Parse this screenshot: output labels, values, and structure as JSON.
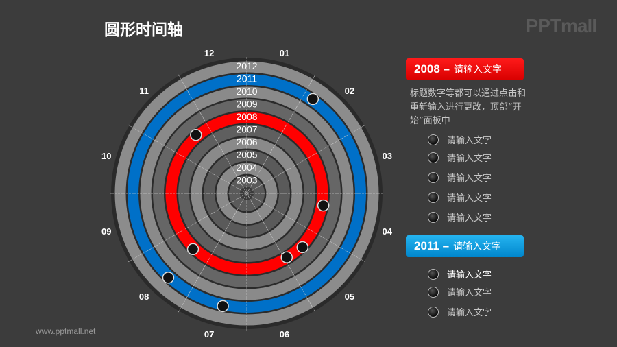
{
  "title": "圆形时间轴",
  "logo": "PPTmall",
  "footer": "www.pptmall.net",
  "colors": {
    "background": "#3c3c3c",
    "red": "#ff0000",
    "blue": "#0070c8",
    "light_ring": "#8c8c8c",
    "dark_ring": "#5f5f5f"
  },
  "years": [
    "2003",
    "2004",
    "2005",
    "2006",
    "2007",
    "2008",
    "2009",
    "2010",
    "2011",
    "2012"
  ],
  "highlight_years": {
    "2008": "#ff0000",
    "2011": "#0070c8"
  },
  "months": [
    "01",
    "02",
    "03",
    "04",
    "05",
    "06",
    "07",
    "08",
    "09",
    "10",
    "11",
    "12"
  ],
  "panel_2008": {
    "year": "2008 –",
    "text": "请输入文字",
    "description": "标题数字等都可以通过点击和重新输入进行更改，顶部“开始”面板中",
    "items": [
      "请输入文字",
      "请输入文字",
      "请输入文字",
      "请输入文字",
      "请输入文字"
    ]
  },
  "panel_2011": {
    "year": "2011 –",
    "text": "请输入文字",
    "items": [
      "请输入文字",
      "请输入文字",
      "请输入文字"
    ]
  }
}
